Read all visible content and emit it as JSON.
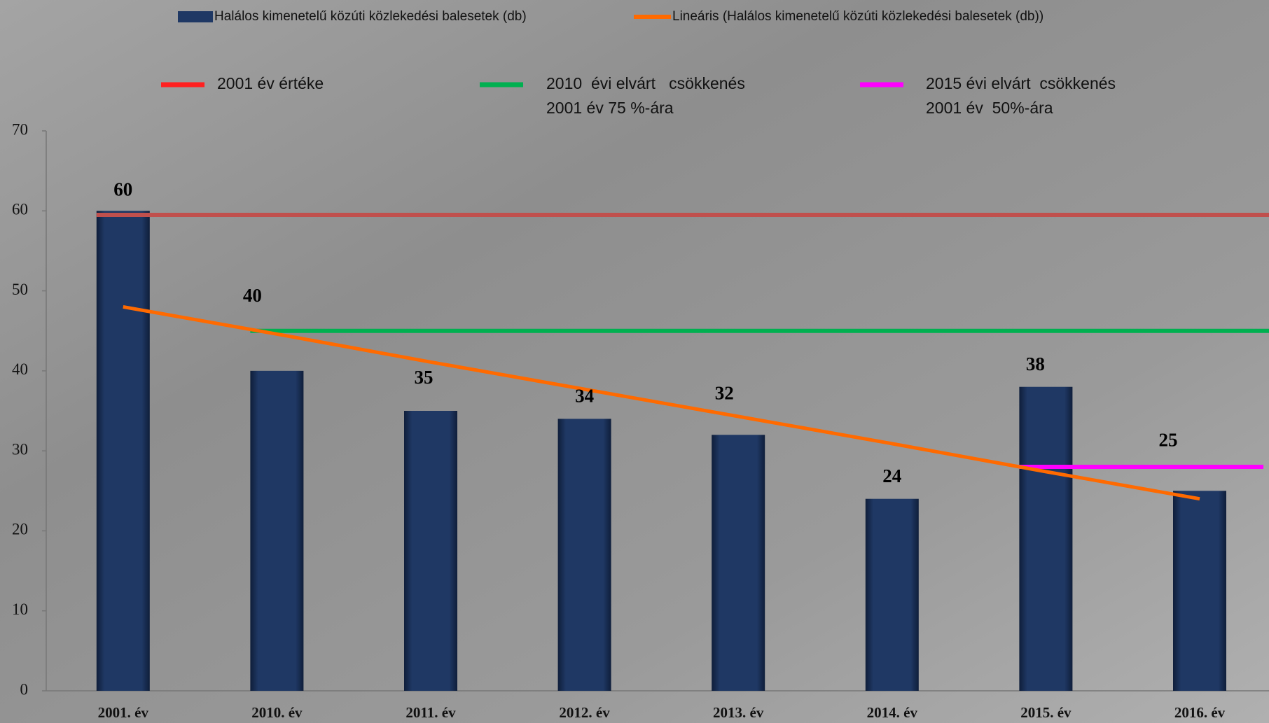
{
  "chart_data": {
    "type": "bar",
    "categories": [
      "2001. év",
      "2010. év",
      "2011. év",
      "2012. év",
      "2013. év",
      "2014. év",
      "2015. év",
      "2016. év"
    ],
    "series": [
      {
        "name": "Halálos kimenetelű közúti közlekedési balesetek (db)",
        "color": "#1f3864",
        "values": [
          60,
          40,
          35,
          34,
          32,
          24,
          38,
          25
        ]
      }
    ],
    "trend": {
      "name": "Lineáris (Halálos kimenetelű közúti közlekedési balesetek (db))",
      "color": "#ff6a00",
      "values": [
        48,
        44.6,
        41.1,
        37.7,
        34.3,
        30.9,
        27.4,
        24
      ]
    },
    "reference_lines": [
      {
        "name": [
          "2001 év értéke"
        ],
        "color": "#c0504d",
        "legend_color": "#ff2020",
        "values": [
          59.5,
          59.5,
          59.5,
          59.5,
          59.5,
          59.5,
          59.5,
          59.5
        ]
      },
      {
        "name": [
          "2010  évi elvárt   csökkenés",
          "2001 év 75 %-ára"
        ],
        "color": "#00b050",
        "legend_color": "#00b050",
        "values": [
          null,
          45,
          45,
          45,
          45,
          45,
          45,
          45
        ]
      },
      {
        "name": [
          "2015 évi elvárt  csökkenés",
          "2001 év  50%-ára"
        ],
        "color": "#ff00ff",
        "legend_color": "#ff00ff",
        "values": [
          null,
          null,
          null,
          null,
          null,
          null,
          28,
          28
        ]
      }
    ],
    "ylim": [
      0,
      70
    ],
    "yticks": [
      0,
      10,
      20,
      30,
      40,
      50,
      60,
      70
    ]
  }
}
